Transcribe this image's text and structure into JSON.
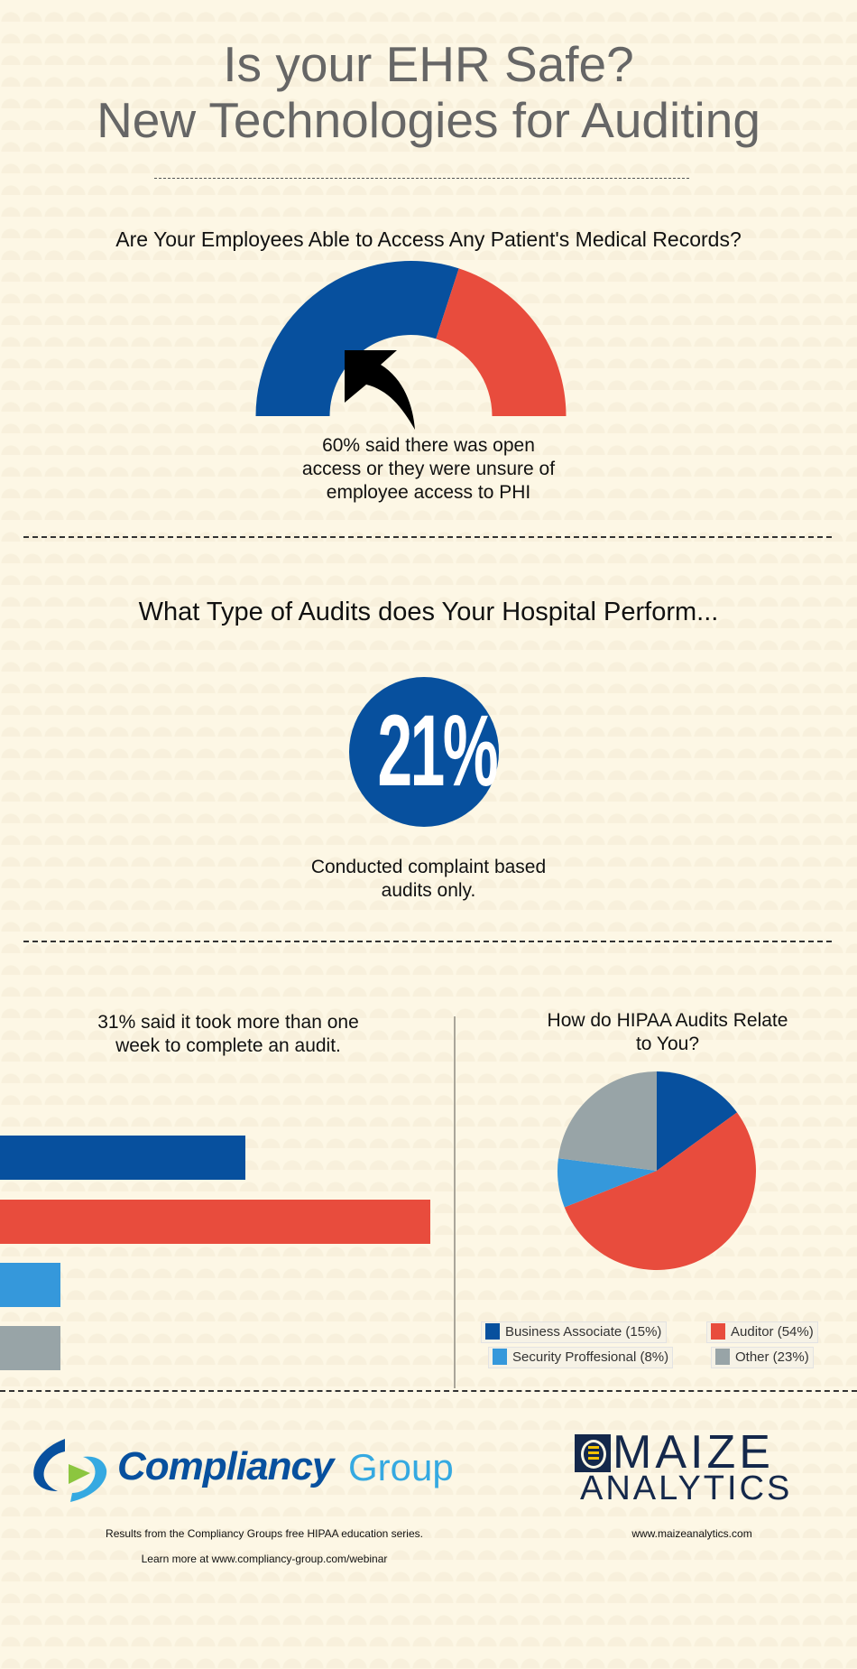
{
  "title": {
    "line1": "Is your EHR Safe?",
    "line2": "New Technologies for Auditing"
  },
  "colors": {
    "blue": "#07509e",
    "red": "#e84c3d",
    "light_blue": "#3598db",
    "gray": "#98a4a7"
  },
  "section1": {
    "heading": "Are Your Employees Able to Access Any Patient's Medical Records?",
    "gauge_fraction_blue": 0.6,
    "caption_lines": [
      "60% said there was open",
      "access or they were unsure of",
      "employee access to PHI"
    ]
  },
  "section2": {
    "heading": "What Type of Audits does Your Hospital Perform...",
    "stat": "21%",
    "caption_lines": [
      "Conducted complaint based",
      "audits only."
    ]
  },
  "section3": {
    "left_heading_lines": [
      "31% said it took more than one",
      "week to complete an audit."
    ],
    "bars": [
      {
        "name": "blue",
        "value": 57
      },
      {
        "name": "red",
        "value": 100
      },
      {
        "name": "light_blue",
        "value": 14
      },
      {
        "name": "gray",
        "value": 14
      }
    ],
    "right_heading_lines": [
      "How do HIPAA Audits Relate",
      "to You?"
    ]
  },
  "chart_data": {
    "type": "pie",
    "title": "How do HIPAA Audits Relate to You?",
    "slices": [
      {
        "label": "Business Associate (15%)",
        "value": 15,
        "color": "#07509e"
      },
      {
        "label": "Auditor (54%)",
        "value": 54,
        "color": "#e84c3d"
      },
      {
        "label": "Security Proffesional (8%)",
        "value": 8,
        "color": "#3598db"
      },
      {
        "label": "Other (23%)",
        "value": 23,
        "color": "#98a4a7"
      }
    ],
    "legend_placement": "bottom"
  },
  "footer": {
    "compliancy_logo": {
      "word1": "Compliancy",
      "word2": "Group"
    },
    "maize_logo": {
      "line1": "MAIZE",
      "line2": "ANALYTICS"
    },
    "left_line1": "Results from the Compliancy Groups free HIPAA education series.",
    "left_line2": "Learn more at www.compliancy-group.com/webinar",
    "right_line": "www.maizeanalytics.com"
  }
}
